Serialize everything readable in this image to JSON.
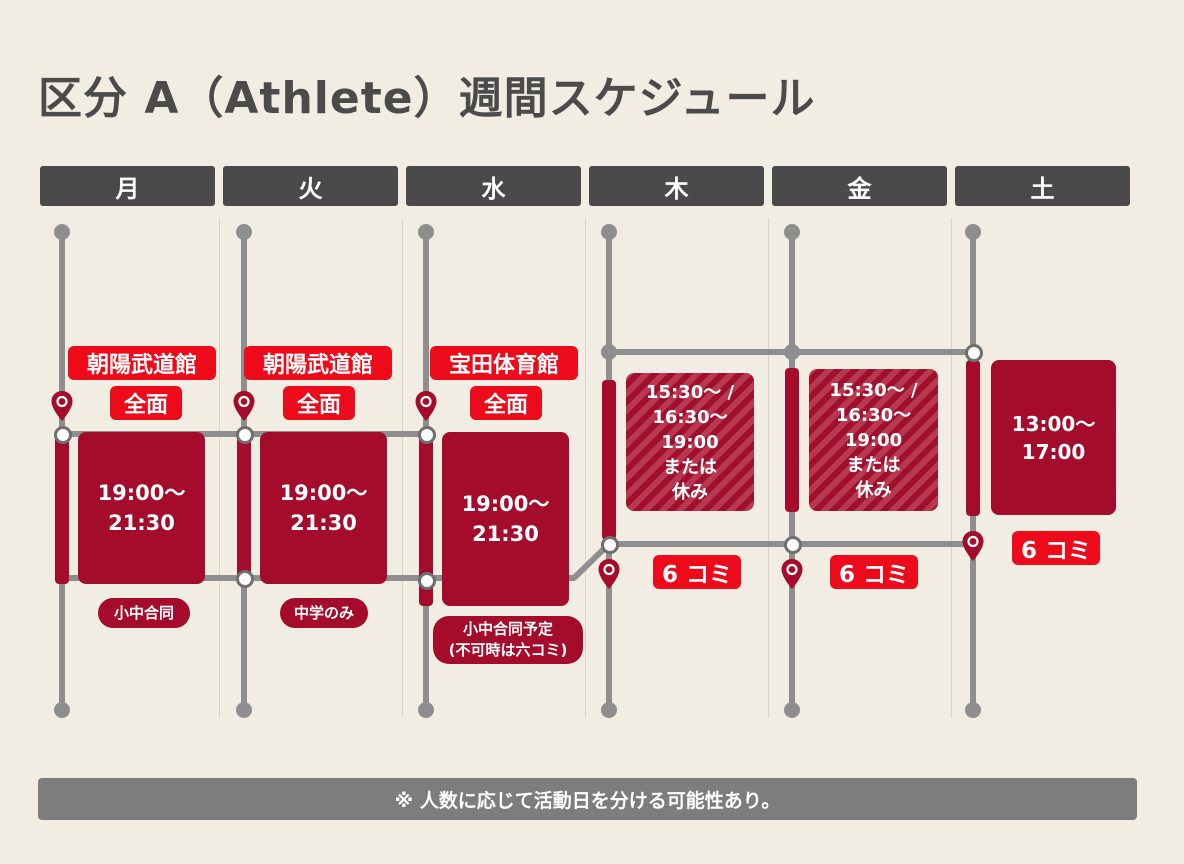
{
  "title": "区分 A（Athlete）週間スケジュール",
  "days": [
    "月",
    "火",
    "水",
    "木",
    "金",
    "土"
  ],
  "venues": {
    "mon": {
      "name": "朝陽武道館",
      "area": "全面"
    },
    "tue": {
      "name": "朝陽武道館",
      "area": "全面"
    },
    "wed": {
      "name": "宝田体育館",
      "area": "全面"
    }
  },
  "times": {
    "mon": "19:00〜\n21:30",
    "tue": "19:00〜\n21:30",
    "wed": "19:00〜\n21:30",
    "thu": "15:30〜 /\n16:30〜19:00\nまたは\n休み",
    "fri": "15:30〜 /\n16:30〜19:00\nまたは\n休み",
    "sat": "13:00〜\n17:00"
  },
  "notes": {
    "mon": "小中合同",
    "tue": "中学のみ",
    "wed": "小中合同予定\n(不可時は六コミ)"
  },
  "komi": {
    "thu": "6 コミ",
    "fri": "6 コミ",
    "sat": "6 コミ"
  },
  "footer": "※ 人数に応じて活動日を分ける可能性あり。",
  "colors": {
    "background": "#f1ede2",
    "header": "#4a4a4a",
    "block": "#a50b2b",
    "highlight": "#ed0a1b",
    "line": "#8e8e8e"
  },
  "icons": [
    "location-pin-icon"
  ]
}
